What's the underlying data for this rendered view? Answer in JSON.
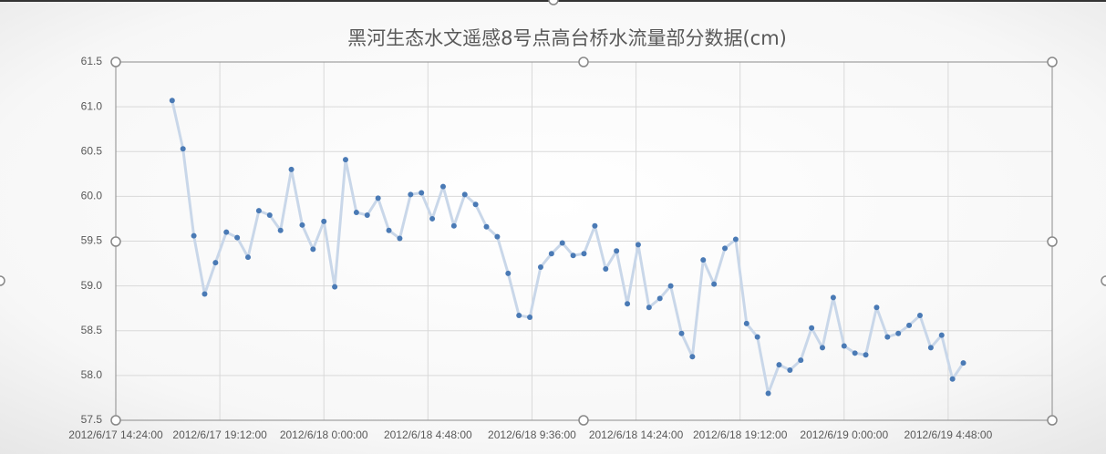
{
  "chart_data": {
    "type": "line",
    "title": "黑河生态水文遥感8号点高台桥水流量部分数据(cm)",
    "x": [
      "2012/6/17 17:00:00",
      "2012/6/17 17:30:00",
      "2012/6/17 18:00:00",
      "2012/6/17 18:30:00",
      "2012/6/17 19:00:00",
      "2012/6/17 19:30:00",
      "2012/6/17 20:00:00",
      "2012/6/17 20:30:00",
      "2012/6/17 21:00:00",
      "2012/6/17 21:30:00",
      "2012/6/17 22:00:00",
      "2012/6/17 22:30:00",
      "2012/6/17 23:00:00",
      "2012/6/17 23:30:00",
      "2012/6/18 0:00:00",
      "2012/6/18 0:30:00",
      "2012/6/18 1:00:00",
      "2012/6/18 1:30:00",
      "2012/6/18 2:00:00",
      "2012/6/18 2:30:00",
      "2012/6/18 3:00:00",
      "2012/6/18 3:30:00",
      "2012/6/18 4:00:00",
      "2012/6/18 4:30:00",
      "2012/6/18 5:00:00",
      "2012/6/18 5:30:00",
      "2012/6/18 6:00:00",
      "2012/6/18 6:30:00",
      "2012/6/18 7:00:00",
      "2012/6/18 7:30:00",
      "2012/6/18 8:00:00",
      "2012/6/18 8:30:00",
      "2012/6/18 9:00:00",
      "2012/6/18 9:30:00",
      "2012/6/18 10:00:00",
      "2012/6/18 10:30:00",
      "2012/6/18 11:00:00",
      "2012/6/18 11:30:00",
      "2012/6/18 12:00:00",
      "2012/6/18 12:30:00",
      "2012/6/18 13:00:00",
      "2012/6/18 13:30:00",
      "2012/6/18 14:00:00",
      "2012/6/18 14:30:00",
      "2012/6/18 15:00:00",
      "2012/6/18 15:30:00",
      "2012/6/18 16:00:00",
      "2012/6/18 16:30:00",
      "2012/6/18 17:00:00",
      "2012/6/18 17:30:00",
      "2012/6/18 18:00:00",
      "2012/6/18 18:30:00",
      "2012/6/18 19:00:00",
      "2012/6/18 19:30:00",
      "2012/6/18 20:00:00",
      "2012/6/18 20:30:00",
      "2012/6/18 21:00:00",
      "2012/6/18 21:30:00",
      "2012/6/18 22:00:00",
      "2012/6/18 22:30:00",
      "2012/6/18 23:00:00",
      "2012/6/18 23:30:00",
      "2012/6/19 0:00:00",
      "2012/6/19 0:30:00",
      "2012/6/19 1:00:00",
      "2012/6/19 1:30:00",
      "2012/6/19 2:00:00",
      "2012/6/19 2:30:00",
      "2012/6/19 3:00:00",
      "2012/6/19 3:30:00",
      "2012/6/19 4:00:00",
      "2012/6/19 4:30:00",
      "2012/6/19 5:00:00",
      "2012/6/19 5:30:00"
    ],
    "series": [
      {
        "line_color": "#c9d7e9",
        "color": "#4a7ab5",
        "values": [
          61.07,
          60.53,
          59.56,
          58.91,
          59.26,
          59.6,
          59.54,
          59.32,
          59.84,
          59.79,
          59.62,
          60.3,
          59.68,
          59.41,
          59.72,
          58.99,
          60.41,
          59.82,
          59.79,
          59.98,
          59.62,
          59.53,
          60.02,
          60.04,
          59.75,
          60.11,
          59.67,
          60.02,
          59.91,
          59.66,
          59.55,
          59.14,
          58.67,
          58.65,
          59.21,
          59.36,
          59.48,
          59.34,
          59.36,
          59.67,
          59.19,
          59.39,
          58.8,
          59.46,
          58.76,
          58.86,
          59.0,
          58.47,
          58.21,
          59.29,
          59.02,
          59.42,
          59.52,
          58.58,
          58.43,
          57.8,
          58.12,
          58.06,
          58.17,
          58.53,
          58.31,
          58.87,
          58.33,
          58.25,
          58.23,
          58.76,
          58.43,
          58.47,
          58.56,
          58.67,
          58.31,
          58.45,
          57.96,
          58.14
        ]
      }
    ],
    "xlim": [
      "2012/6/17 14:24:00",
      "2012/6/19 9:36:00"
    ],
    "xticks": [
      "2012/6/17 14:24:00",
      "2012/6/17 19:12:00",
      "2012/6/18 0:00:00",
      "2012/6/18 4:48:00",
      "2012/6/18 9:36:00",
      "2012/6/18 14:24:00",
      "2012/6/18 19:12:00",
      "2012/6/19 0:00:00",
      "2012/6/19 4:48:00"
    ],
    "ylim": [
      57.5,
      61.5
    ],
    "yticks": [
      57.5,
      {
        "value": 58,
        "label": "58.0"
      },
      58.5,
      {
        "value": 59,
        "label": "59.0"
      },
      59.5,
      {
        "value": 60,
        "label": "60.0"
      },
      60.5,
      {
        "value": 61,
        "label": "61.0"
      },
      61.5
    ],
    "grid": true
  }
}
